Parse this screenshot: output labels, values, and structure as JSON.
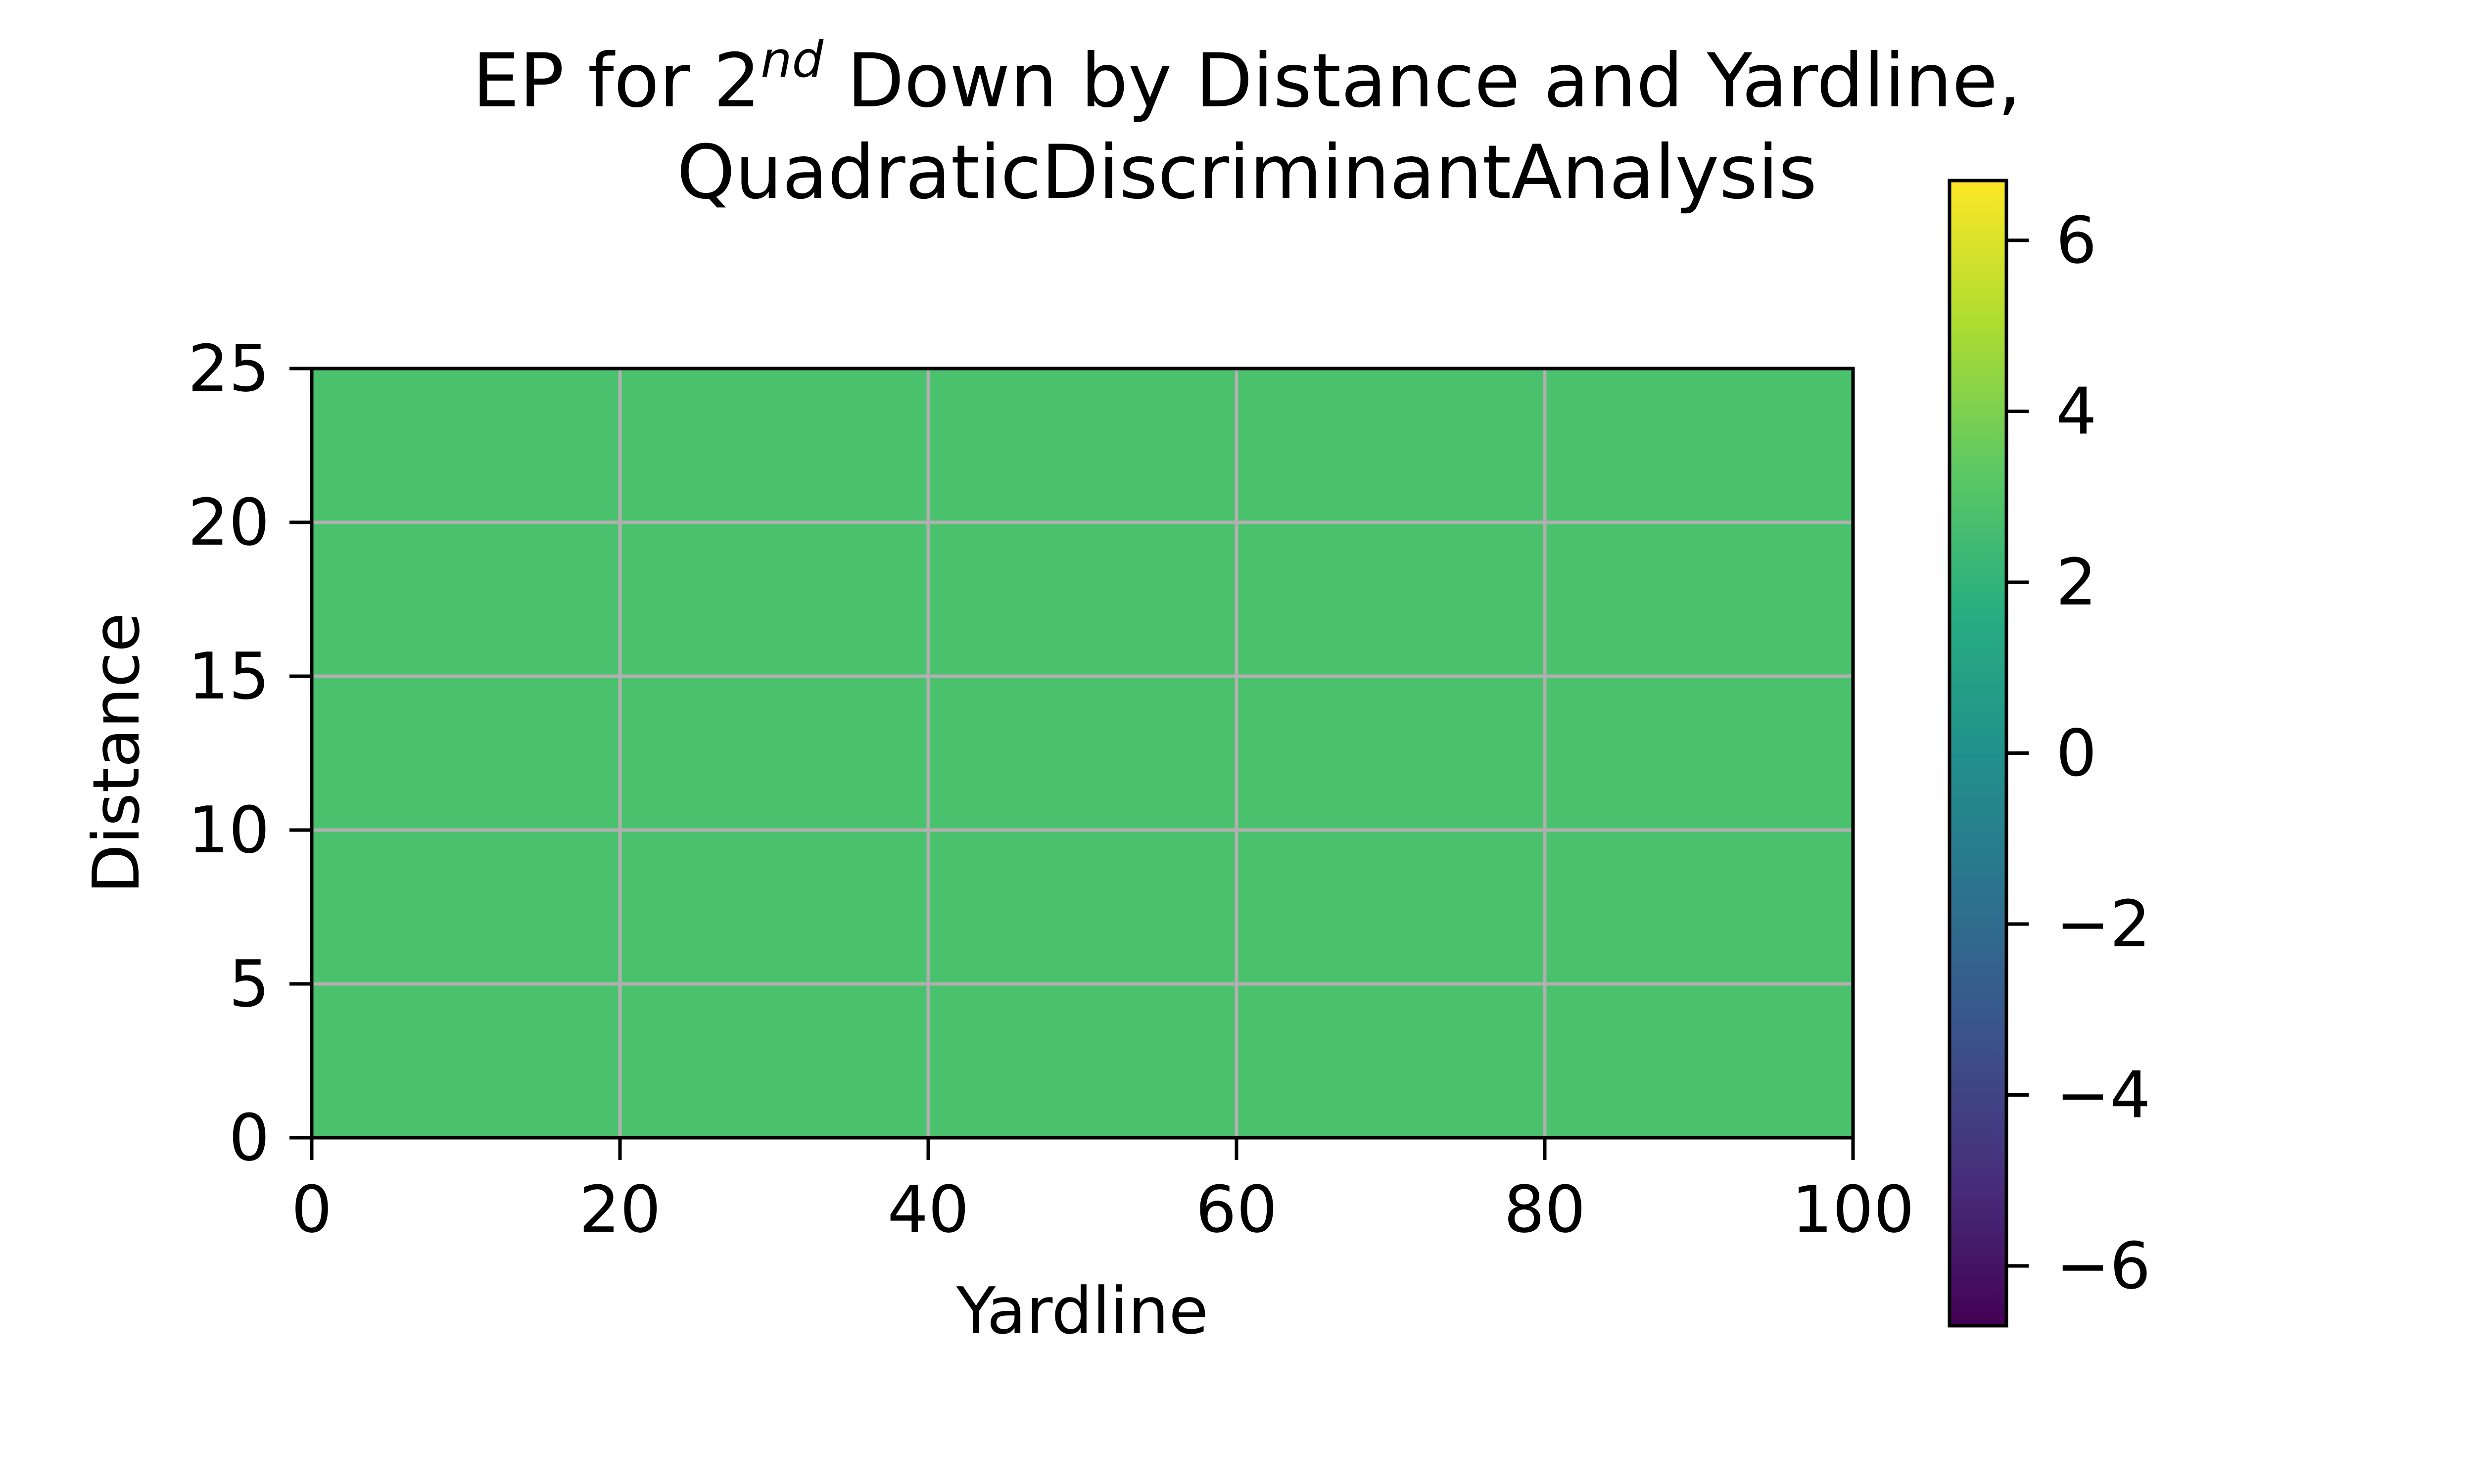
{
  "chart_data": {
    "type": "heatmap",
    "title_line1_prefix": "EP for 2",
    "title_line1_superscript": "nd",
    "title_line1_suffix": " Down by Distance and Yardline,",
    "title_line2": "QuadraticDiscriminantAnalysis",
    "xlabel": "Yardline",
    "ylabel": "Distance",
    "xlim": [
      0,
      100
    ],
    "ylim": [
      0,
      25
    ],
    "x_ticks": [
      0,
      20,
      40,
      60,
      80,
      100
    ],
    "y_ticks": [
      0,
      5,
      10,
      15,
      20,
      25
    ],
    "x_tick_labels": [
      "0",
      "20",
      "40",
      "60",
      "80",
      "100"
    ],
    "y_tick_labels": [
      "0",
      "5",
      "10",
      "15",
      "20",
      "25"
    ],
    "grid": true,
    "colormap": "viridis",
    "colorbar_range": [
      -6.7,
      6.7
    ],
    "colorbar_ticks": [
      6,
      4,
      2,
      0,
      -2,
      -4,
      -6
    ],
    "colorbar_tick_labels": [
      "6",
      "4",
      "2",
      "0",
      "−2",
      "−4",
      "−6"
    ],
    "fill_value": 3.0,
    "fill_color": "#4ac16d",
    "grid_color": "#b0b0b0",
    "colormap_stops": [
      "#440154",
      "#472d7b",
      "#3b528b",
      "#2c728e",
      "#21918c",
      "#28ae80",
      "#5ec962",
      "#addc30",
      "#fde725"
    ]
  }
}
